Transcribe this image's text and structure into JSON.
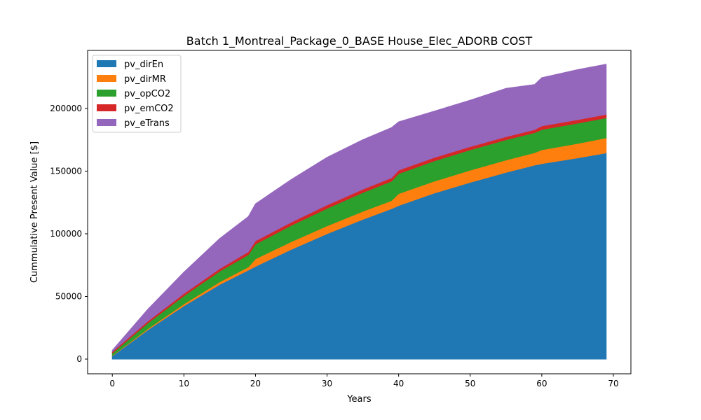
{
  "chart_data": {
    "type": "area",
    "stacked": true,
    "title": "Batch 1_Montreal_Package_0_BASE House_Elec_ADORB COST",
    "xlabel": "Years",
    "ylabel": "Cummulative Present Value [$]",
    "xlim": [
      -3.45,
      72.45
    ],
    "ylim": [
      -11730,
      246330
    ],
    "xticks": [
      0,
      10,
      20,
      30,
      40,
      50,
      60,
      70
    ],
    "yticks": [
      0,
      50000,
      100000,
      150000,
      200000
    ],
    "grid": false,
    "legend_position": "top-left",
    "x": [
      0,
      5,
      10,
      15,
      19,
      20,
      25,
      30,
      35,
      39,
      40,
      45,
      50,
      55,
      59,
      60,
      65,
      69
    ],
    "series": [
      {
        "name": "pv_dirEn",
        "color": "#1f77b4",
        "values": [
          2500,
          23500,
          42500,
          59500,
          71000,
          74000,
          87500,
          100000,
          111500,
          120000,
          122500,
          132500,
          141000,
          149000,
          154800,
          156000,
          160500,
          164500
        ]
      },
      {
        "name": "pv_dirMR",
        "color": "#ff7f0e",
        "values": [
          300,
          900,
          1500,
          2100,
          2500,
          6000,
          6200,
          6300,
          6400,
          6500,
          9500,
          9500,
          9700,
          9800,
          9900,
          11000,
          11500,
          12000
        ]
      },
      {
        "name": "pv_opCO2",
        "color": "#2ca02c",
        "values": [
          2000,
          4500,
          6500,
          8500,
          9800,
          11800,
          13000,
          14000,
          15000,
          15500,
          16000,
          16200,
          16300,
          16200,
          16000,
          16200,
          16200,
          16000
        ]
      },
      {
        "name": "pv_emCO2",
        "color": "#d62728",
        "values": [
          1200,
          1600,
          1900,
          2100,
          2400,
          2600,
          2600,
          2700,
          2700,
          2700,
          2800,
          2700,
          2600,
          2500,
          2400,
          2900,
          2800,
          2800
        ]
      },
      {
        "name": "pv_eTrans",
        "color": "#9467bd",
        "values": [
          1000,
          9500,
          17000,
          24000,
          28000,
          29500,
          34000,
          38000,
          39500,
          40000,
          38500,
          37000,
          37000,
          38500,
          36000,
          38500,
          40000,
          40000
        ]
      }
    ]
  }
}
